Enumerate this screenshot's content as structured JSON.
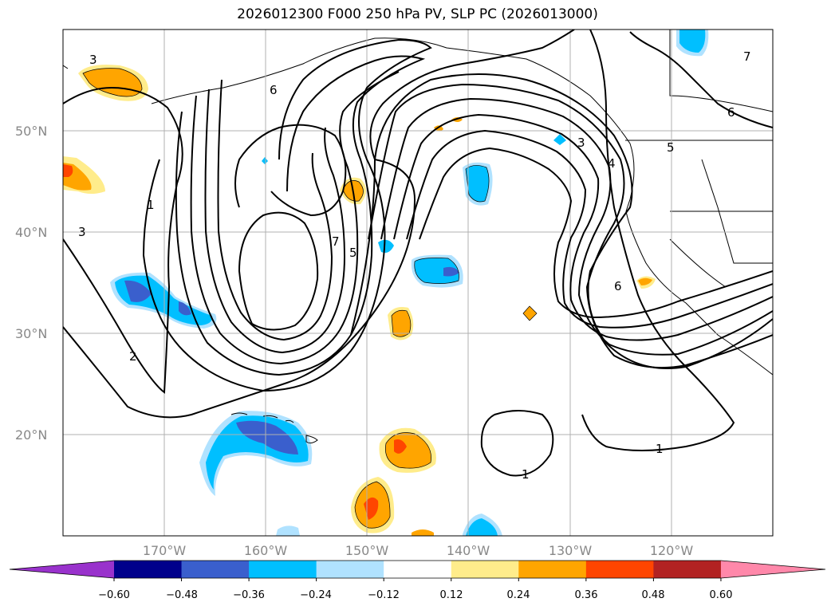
{
  "title": "2026012300 F000 250 hPa PV, SLP PC (2026013000)",
  "map": {
    "projection": "PlateCarree",
    "extent_lon": [
      -180,
      -110
    ],
    "extent_lat": [
      10,
      60
    ],
    "lat_labels": [
      "20°N",
      "30°N",
      "40°N",
      "50°N"
    ],
    "lon_labels": [
      "170°W",
      "160°W",
      "150°W",
      "140°W",
      "130°W",
      "120°W"
    ],
    "gridlines": true,
    "fill_field": "250 hPa PV anomaly",
    "contour_field": "SLP PC",
    "contour_labels": [
      "1",
      "1",
      "1",
      "2",
      "3",
      "3",
      "3",
      "4",
      "5",
      "5",
      "6",
      "6",
      "6",
      "7",
      "7"
    ]
  },
  "colorbar": {
    "ticks": [
      "−0.60",
      "−0.48",
      "−0.36",
      "−0.24",
      "−0.12",
      "0.12",
      "0.24",
      "0.36",
      "0.48",
      "0.60"
    ],
    "bounds": [
      -0.6,
      -0.48,
      -0.36,
      -0.24,
      -0.12,
      0.12,
      0.24,
      0.36,
      0.48,
      0.6
    ],
    "colors": [
      "#9932cc",
      "#00008b",
      "#3a5fcd",
      "#00bfff",
      "#b0e2ff",
      "#ffffff",
      "#ffec8b",
      "#ffa500",
      "#ff4500",
      "#b22222",
      "#ff88aa"
    ],
    "extend": "both"
  },
  "colors": {
    "grid": "#b0b0b0",
    "contour": "#000000",
    "tick_label": "#888888"
  }
}
